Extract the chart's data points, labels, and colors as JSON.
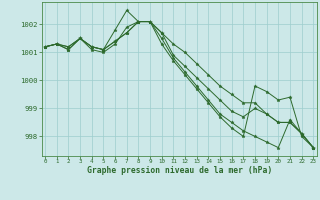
{
  "xlabel": "Graphe pression niveau de la mer (hPa)",
  "background_color": "#cce8e8",
  "grid_color": "#9ecece",
  "line_color": "#2d6a2d",
  "x_ticks": [
    0,
    1,
    2,
    3,
    4,
    5,
    6,
    7,
    8,
    9,
    10,
    11,
    12,
    13,
    14,
    15,
    16,
    17,
    18,
    19,
    20,
    21,
    22,
    23
  ],
  "y_ticks": [
    998,
    999,
    1000,
    1001,
    1002
  ],
  "ylim": [
    997.3,
    1002.8
  ],
  "xlim": [
    -0.3,
    23.3
  ],
  "series": [
    [
      1001.2,
      1001.3,
      1001.1,
      1001.5,
      1001.2,
      1001.1,
      1001.8,
      1002.5,
      1002.1,
      1002.1,
      1001.7,
      1001.3,
      1001.0,
      1000.6,
      1000.2,
      999.8,
      999.5,
      999.2,
      999.2,
      998.8,
      998.5,
      998.5,
      998.1,
      997.6
    ],
    [
      1001.2,
      1001.3,
      1001.1,
      1001.5,
      1001.1,
      1001.0,
      1001.3,
      1001.9,
      1002.1,
      1002.1,
      1001.7,
      1000.9,
      1000.5,
      1000.1,
      999.7,
      999.3,
      998.9,
      998.7,
      999.0,
      998.8,
      998.5,
      998.5,
      998.1,
      997.6
    ],
    [
      1001.2,
      1001.3,
      1001.2,
      1001.5,
      1001.2,
      1001.1,
      1001.4,
      1001.7,
      1002.1,
      1002.1,
      1001.5,
      1000.8,
      1000.3,
      999.8,
      999.3,
      998.8,
      998.5,
      998.2,
      998.0,
      997.8,
      997.6,
      998.6,
      998.1,
      997.6
    ],
    [
      1001.2,
      1001.3,
      1001.2,
      1001.5,
      1001.2,
      1001.1,
      1001.4,
      1001.7,
      1002.1,
      1002.1,
      1001.3,
      1000.7,
      1000.2,
      999.7,
      999.2,
      998.7,
      998.3,
      998.0,
      999.8,
      999.6,
      999.3,
      999.4,
      998.0,
      997.6
    ]
  ]
}
